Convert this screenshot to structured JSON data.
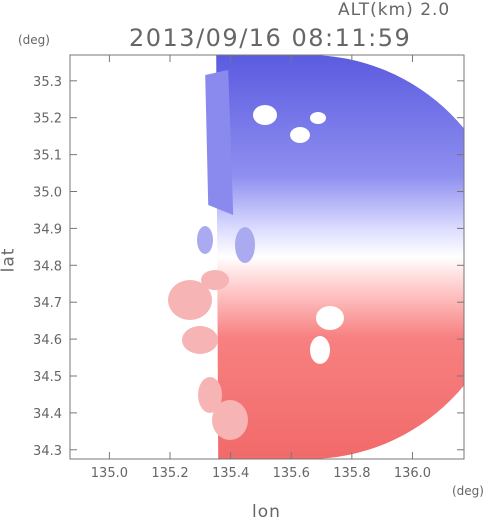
{
  "header": {
    "altitude_label": "ALT(km) 2.0",
    "timestamp": "2013/09/16 08:11:59"
  },
  "axes": {
    "y_unit": "(deg)",
    "x_unit": "(deg)",
    "xlabel": "lon",
    "ylabel": "lat"
  },
  "colors": {
    "approaching": "#6f6fe6",
    "receding": "#f26464",
    "zero": "#ffffff",
    "axis": "#777777"
  },
  "chart_data": {
    "type": "heatmap",
    "title": "2013/09/16 08:11:59",
    "subtitle": "ALT(km) 2.0",
    "xlabel": "lon",
    "ylabel": "lat",
    "xlim": [
      134.87,
      136.17
    ],
    "ylim": [
      34.275,
      35.37
    ],
    "xticks": [
      135.0,
      135.2,
      135.4,
      135.6,
      135.8,
      136.0
    ],
    "xtick_labels": [
      "135.0",
      "135.2",
      "135.4",
      "135.6",
      "135.8",
      "136.0"
    ],
    "yticks": [
      34.3,
      34.4,
      34.5,
      34.6,
      34.7,
      34.8,
      34.9,
      35.0,
      35.1,
      35.2,
      35.3
    ],
    "ytick_labels": [
      "34.3",
      "34.4",
      "34.5",
      "34.6",
      "34.7",
      "34.8",
      "34.9",
      "35.0",
      "35.1",
      "35.2",
      "35.3"
    ],
    "colormap": "blue-white-red",
    "radar_center": [
      135.59,
      34.82
    ],
    "zero_line_direction": "east-northeast",
    "blue_region": "north of center",
    "red_region": "south of center"
  }
}
